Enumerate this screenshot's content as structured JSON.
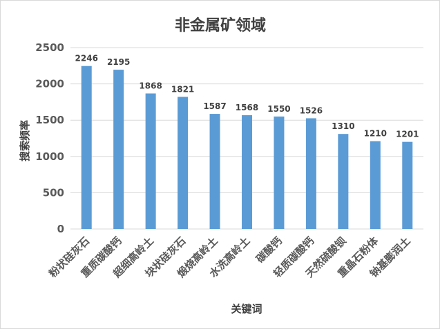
{
  "chart_data": {
    "type": "bar",
    "title": "非金属矿领域",
    "xlabel": "关键词",
    "ylabel": "搜索频率",
    "categories": [
      "粉状硅灰石",
      "重质碳酸钙",
      "超细高岭土",
      "块状硅灰石",
      "煅烧高岭土",
      "水洗高岭土",
      "碳酸钙",
      "轻质碳酸钙",
      "天然硫酸钡",
      "重晶石粉体",
      "钠基膨润土"
    ],
    "values": [
      2246,
      2195,
      1868,
      1821,
      1587,
      1568,
      1550,
      1526,
      1310,
      1210,
      1201
    ],
    "ylim": [
      0,
      2500
    ],
    "yticks": [
      0,
      500,
      1000,
      1500,
      2000,
      2500
    ],
    "grid": true,
    "legend": "none",
    "colors": {
      "bar": "#5b9bd5",
      "grid": "#d9d9d9",
      "text": "#595959"
    }
  }
}
